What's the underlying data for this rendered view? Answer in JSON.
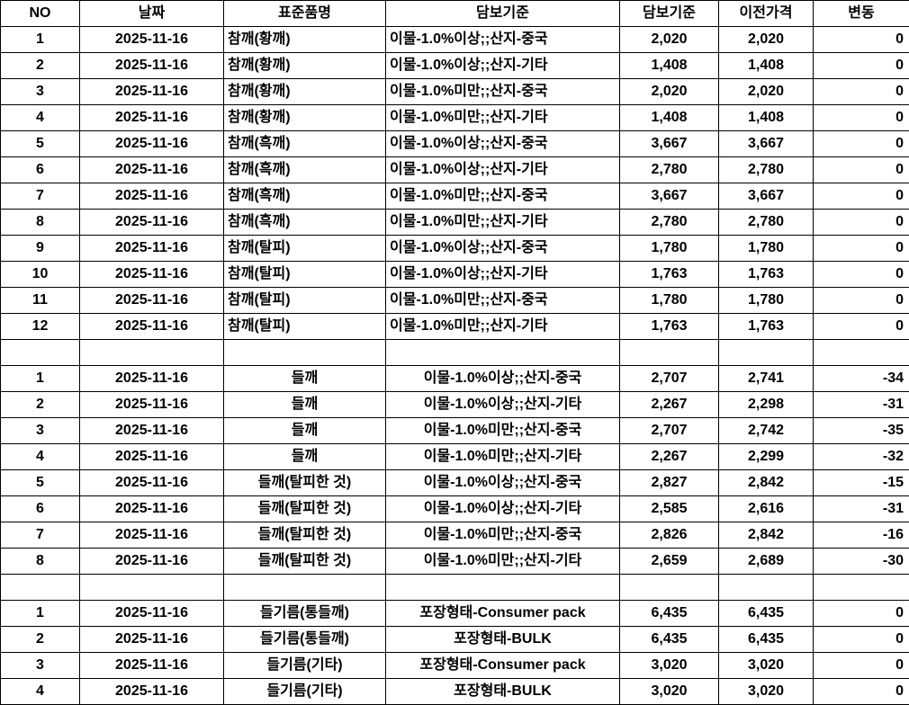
{
  "headers": [
    "NO",
    "날짜",
    "표준품명",
    "담보기준",
    "담보기준",
    "이전가격",
    "변동"
  ],
  "colors": {
    "text": "#000000",
    "grid_border": "#000000",
    "background": "#ffffff"
  },
  "rows": [
    {
      "type": "data",
      "section": 1,
      "cells": [
        "1",
        "2025-11-16",
        "참깨(황깨)",
        "이물-1.0%이상;;산지-중국",
        "2,020",
        "2,020",
        "0"
      ]
    },
    {
      "type": "data",
      "section": 1,
      "cells": [
        "2",
        "2025-11-16",
        "참깨(황깨)",
        "이물-1.0%이상;;산지-기타",
        "1,408",
        "1,408",
        "0"
      ]
    },
    {
      "type": "data",
      "section": 1,
      "cells": [
        "3",
        "2025-11-16",
        "참깨(황깨)",
        "이물-1.0%미만;;산지-중국",
        "2,020",
        "2,020",
        "0"
      ]
    },
    {
      "type": "data",
      "section": 1,
      "cells": [
        "4",
        "2025-11-16",
        "참깨(황깨)",
        "이물-1.0%미만;;산지-기타",
        "1,408",
        "1,408",
        "0"
      ]
    },
    {
      "type": "data",
      "section": 1,
      "cells": [
        "5",
        "2025-11-16",
        "참깨(흑깨)",
        "이물-1.0%이상;;산지-중국",
        "3,667",
        "3,667",
        "0"
      ]
    },
    {
      "type": "data",
      "section": 1,
      "cells": [
        "6",
        "2025-11-16",
        "참깨(흑깨)",
        "이물-1.0%이상;;산지-기타",
        "2,780",
        "2,780",
        "0"
      ]
    },
    {
      "type": "data",
      "section": 1,
      "cells": [
        "7",
        "2025-11-16",
        "참깨(흑깨)",
        "이물-1.0%미만;;산지-중국",
        "3,667",
        "3,667",
        "0"
      ]
    },
    {
      "type": "data",
      "section": 1,
      "cells": [
        "8",
        "2025-11-16",
        "참깨(흑깨)",
        "이물-1.0%미만;;산지-기타",
        "2,780",
        "2,780",
        "0"
      ]
    },
    {
      "type": "data",
      "section": 1,
      "cells": [
        "9",
        "2025-11-16",
        "참깨(탈피)",
        "이물-1.0%이상;;산지-중국",
        "1,780",
        "1,780",
        "0"
      ]
    },
    {
      "type": "data",
      "section": 1,
      "cells": [
        "10",
        "2025-11-16",
        "참깨(탈피)",
        "이물-1.0%이상;;산지-기타",
        "1,763",
        "1,763",
        "0"
      ]
    },
    {
      "type": "data",
      "section": 1,
      "cells": [
        "11",
        "2025-11-16",
        "참깨(탈피)",
        "이물-1.0%미만;;산지-중국",
        "1,780",
        "1,780",
        "0"
      ]
    },
    {
      "type": "data",
      "section": 1,
      "cells": [
        "12",
        "2025-11-16",
        "참깨(탈피)",
        "이물-1.0%미만;;산지-기타",
        "1,763",
        "1,763",
        "0"
      ]
    },
    {
      "type": "spacer",
      "section": 0,
      "cells": [
        "",
        "",
        "",
        "",
        "",
        "",
        ""
      ]
    },
    {
      "type": "data",
      "section": 2,
      "cells": [
        "1",
        "2025-11-16",
        "들깨",
        "이물-1.0%이상;;산지-중국",
        "2,707",
        "2,741",
        "-34"
      ]
    },
    {
      "type": "data",
      "section": 2,
      "cells": [
        "2",
        "2025-11-16",
        "들깨",
        "이물-1.0%이상;;산지-기타",
        "2,267",
        "2,298",
        "-31"
      ]
    },
    {
      "type": "data",
      "section": 2,
      "cells": [
        "3",
        "2025-11-16",
        "들깨",
        "이물-1.0%미만;;산지-중국",
        "2,707",
        "2,742",
        "-35"
      ]
    },
    {
      "type": "data",
      "section": 2,
      "cells": [
        "4",
        "2025-11-16",
        "들깨",
        "이물-1.0%미만;;산지-기타",
        "2,267",
        "2,299",
        "-32"
      ]
    },
    {
      "type": "data",
      "section": 2,
      "cells": [
        "5",
        "2025-11-16",
        "들깨(탈피한 것)",
        "이물-1.0%이상;;산지-중국",
        "2,827",
        "2,842",
        "-15"
      ]
    },
    {
      "type": "data",
      "section": 2,
      "cells": [
        "6",
        "2025-11-16",
        "들깨(탈피한 것)",
        "이물-1.0%이상;;산지-기타",
        "2,585",
        "2,616",
        "-31"
      ]
    },
    {
      "type": "data",
      "section": 2,
      "cells": [
        "7",
        "2025-11-16",
        "들깨(탈피한 것)",
        "이물-1.0%미만;;산지-중국",
        "2,826",
        "2,842",
        "-16"
      ]
    },
    {
      "type": "data",
      "section": 2,
      "cells": [
        "8",
        "2025-11-16",
        "들깨(탈피한 것)",
        "이물-1.0%미만;;산지-기타",
        "2,659",
        "2,689",
        "-30"
      ]
    },
    {
      "type": "spacer",
      "section": 0,
      "cells": [
        "",
        "",
        "",
        "",
        "",
        "",
        ""
      ]
    },
    {
      "type": "data",
      "section": 3,
      "cells": [
        "1",
        "2025-11-16",
        "들기름(통들깨)",
        "포장형태-Consumer pack",
        "6,435",
        "6,435",
        "0"
      ]
    },
    {
      "type": "data",
      "section": 3,
      "cells": [
        "2",
        "2025-11-16",
        "들기름(통들깨)",
        "포장형태-BULK",
        "6,435",
        "6,435",
        "0"
      ]
    },
    {
      "type": "data",
      "section": 3,
      "cells": [
        "3",
        "2025-11-16",
        "들기름(기타)",
        "포장형태-Consumer pack",
        "3,020",
        "3,020",
        "0"
      ]
    },
    {
      "type": "data",
      "section": 3,
      "cells": [
        "4",
        "2025-11-16",
        "들기름(기타)",
        "포장형태-BULK",
        "3,020",
        "3,020",
        "0"
      ]
    }
  ]
}
